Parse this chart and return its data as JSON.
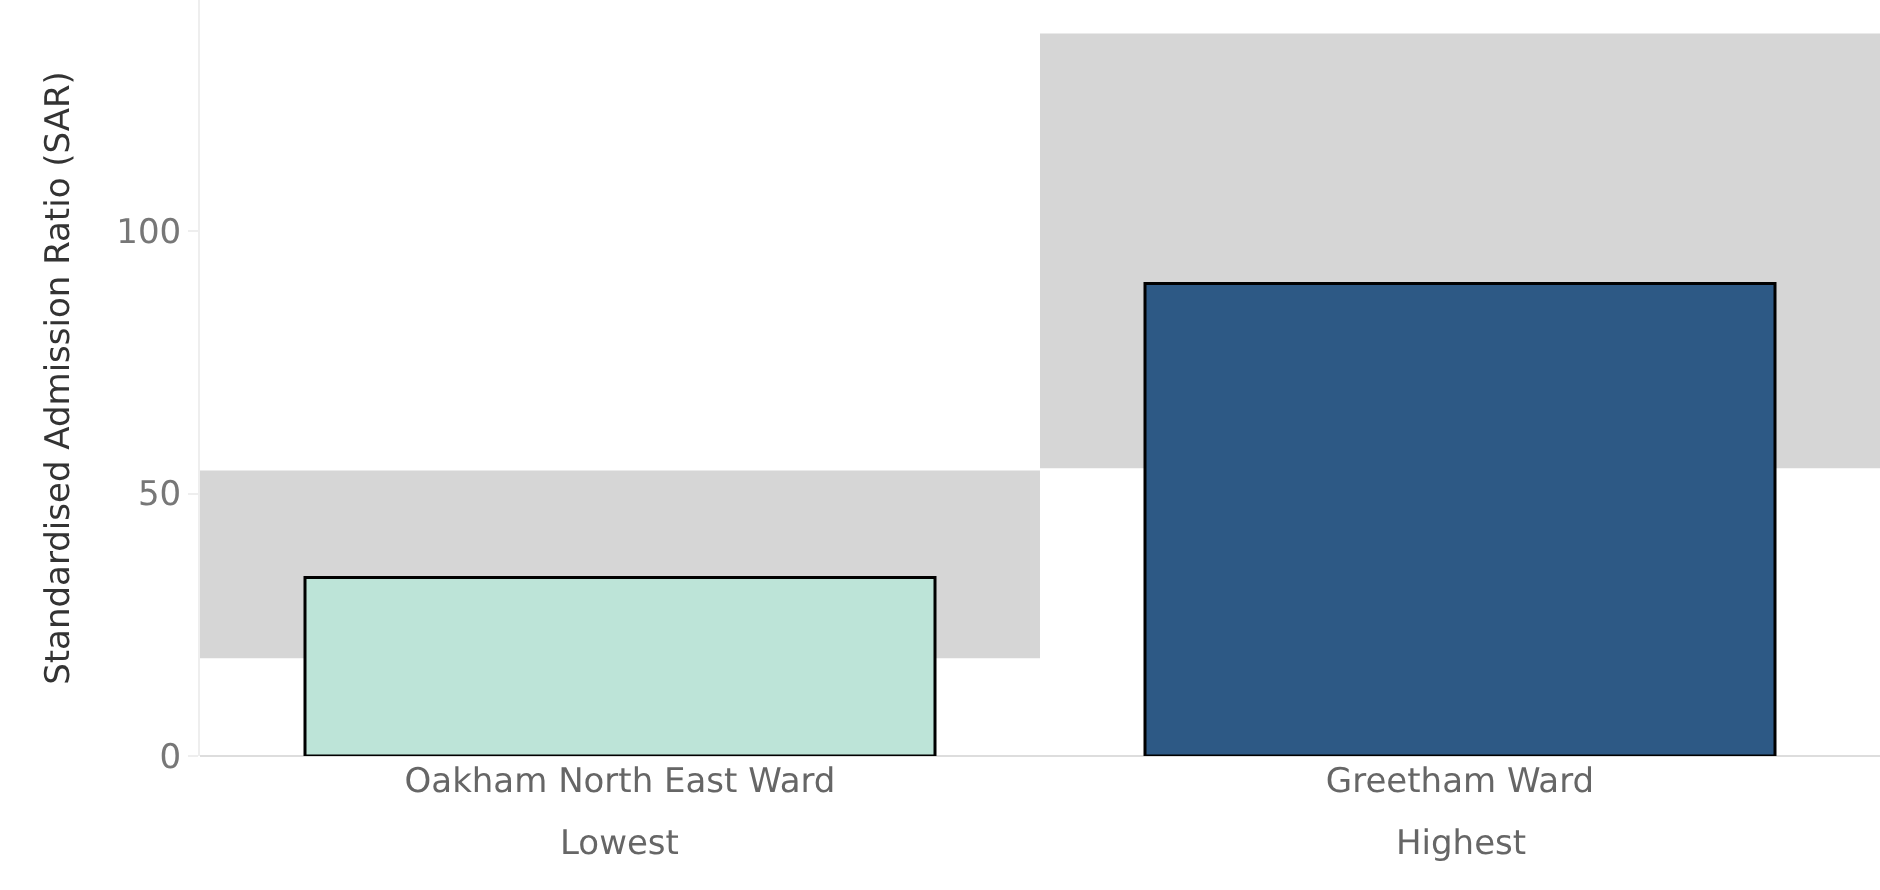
{
  "chart_data": {
    "type": "bar",
    "ylabel": "Standardised Admission Ratio (SAR)",
    "categories": [
      "Oakham North East Ward",
      "Greetham Ward"
    ],
    "series": [
      {
        "color": "#d6d6d6",
        "base": [
          18.6,
          54.8
        ],
        "values": [
          35.8,
          82.8
        ]
      },
      {
        "colors": [
          "#bde4d8",
          "#2d5985"
        ],
        "values": [
          34,
          90
        ]
      }
    ],
    "annotations": [
      "Lowest",
      "Highest"
    ],
    "ylim": [
      0,
      144
    ],
    "yticks": [
      0,
      50,
      100
    ],
    "grid": false
  }
}
